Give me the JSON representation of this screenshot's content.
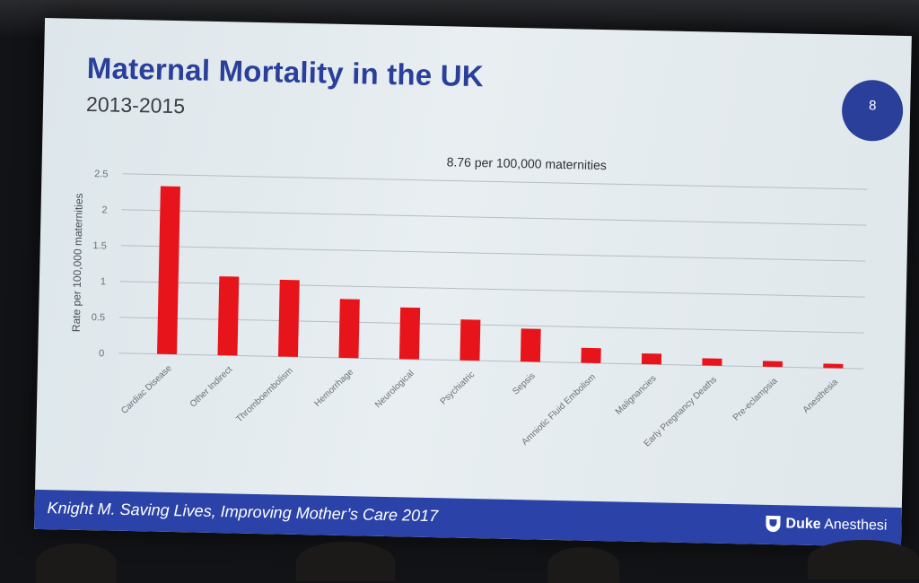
{
  "slide": {
    "title": "Maternal Mortality in the UK",
    "subtitle": "2013-2015",
    "page_number": "8",
    "footer_citation": "Knight M. Saving Lives, Improving Mother’s Care 2017",
    "logo_bold": "Duke",
    "logo_rest": " Anesthesi",
    "accent_color": "#2a3f9a",
    "footer_color": "#2b43a8"
  },
  "chart_data": {
    "type": "bar",
    "title": "",
    "annotation": "8.76 per 100,000 maternities",
    "xlabel": "",
    "ylabel": "Rate per 100,000 maternities",
    "ylim": [
      0,
      2.5
    ],
    "yticks": [
      "0",
      "0.5",
      "1",
      "1.5",
      "2",
      "2.5"
    ],
    "grid": true,
    "bar_color": "#e8141b",
    "categories": [
      "Cardiac Disease",
      "Other Indirect",
      "Thromboembolism",
      "Hemorrhage",
      "Neurological",
      "Psychiatric",
      "Sepsis",
      "Amniotic Fluid Embolism",
      "Malignancies",
      "Early Pregnancy Deaths",
      "Pre-eclampsia",
      "Anesthesia"
    ],
    "values": [
      2.34,
      1.1,
      1.07,
      0.82,
      0.72,
      0.57,
      0.46,
      0.21,
      0.15,
      0.1,
      0.08,
      0.06
    ]
  }
}
